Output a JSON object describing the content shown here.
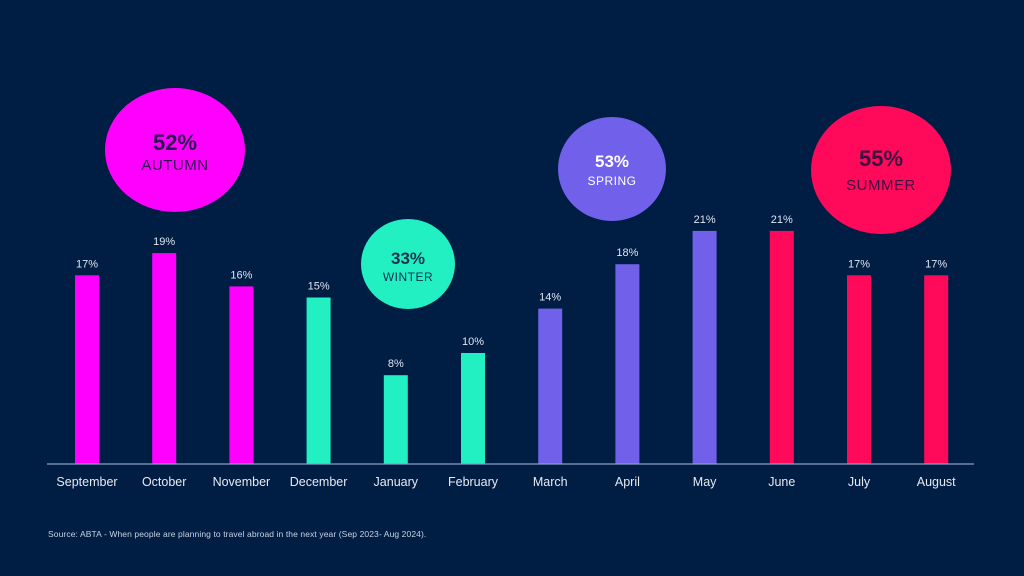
{
  "chart_data": {
    "type": "bar",
    "title": "",
    "xlabel": "",
    "ylabel": "",
    "ylim": [
      0,
      21
    ],
    "grid": false,
    "categories": [
      "September",
      "October",
      "November",
      "December",
      "January",
      "February",
      "March",
      "April",
      "May",
      "June",
      "July",
      "August"
    ],
    "values": [
      17,
      19,
      16,
      15,
      8,
      10,
      14,
      18,
      21,
      21,
      17,
      17
    ],
    "value_labels": [
      "17%",
      "19%",
      "16%",
      "15%",
      "8%",
      "10%",
      "14%",
      "18%",
      "21%",
      "21%",
      "17%",
      "17%"
    ],
    "unit": "%",
    "season_of_month": [
      "autumn",
      "autumn",
      "autumn",
      "winter",
      "winter",
      "winter",
      "spring",
      "spring",
      "spring",
      "summer",
      "summer",
      "summer"
    ],
    "seasons": [
      {
        "key": "autumn",
        "name": "AUTUMN",
        "total_label": "52%",
        "total": 52,
        "color": "#ff00ff",
        "text_color": "#2a1650"
      },
      {
        "key": "winter",
        "name": "WINTER",
        "total_label": "33%",
        "total": 33,
        "color": "#22efc2",
        "text_color": "#14334d"
      },
      {
        "key": "spring",
        "name": "SPRING",
        "total_label": "53%",
        "total": 53,
        "color": "#7160ea",
        "text_color": "#ffffff"
      },
      {
        "key": "summer",
        "name": "SUMMER",
        "total_label": "55%",
        "total": 55,
        "color": "#ff0a5a",
        "text_color": "#3a1040"
      }
    ]
  },
  "source": "Source: ABTA - When people are planning to travel abroad in the next year (Sep 2023- Aug 2024)."
}
